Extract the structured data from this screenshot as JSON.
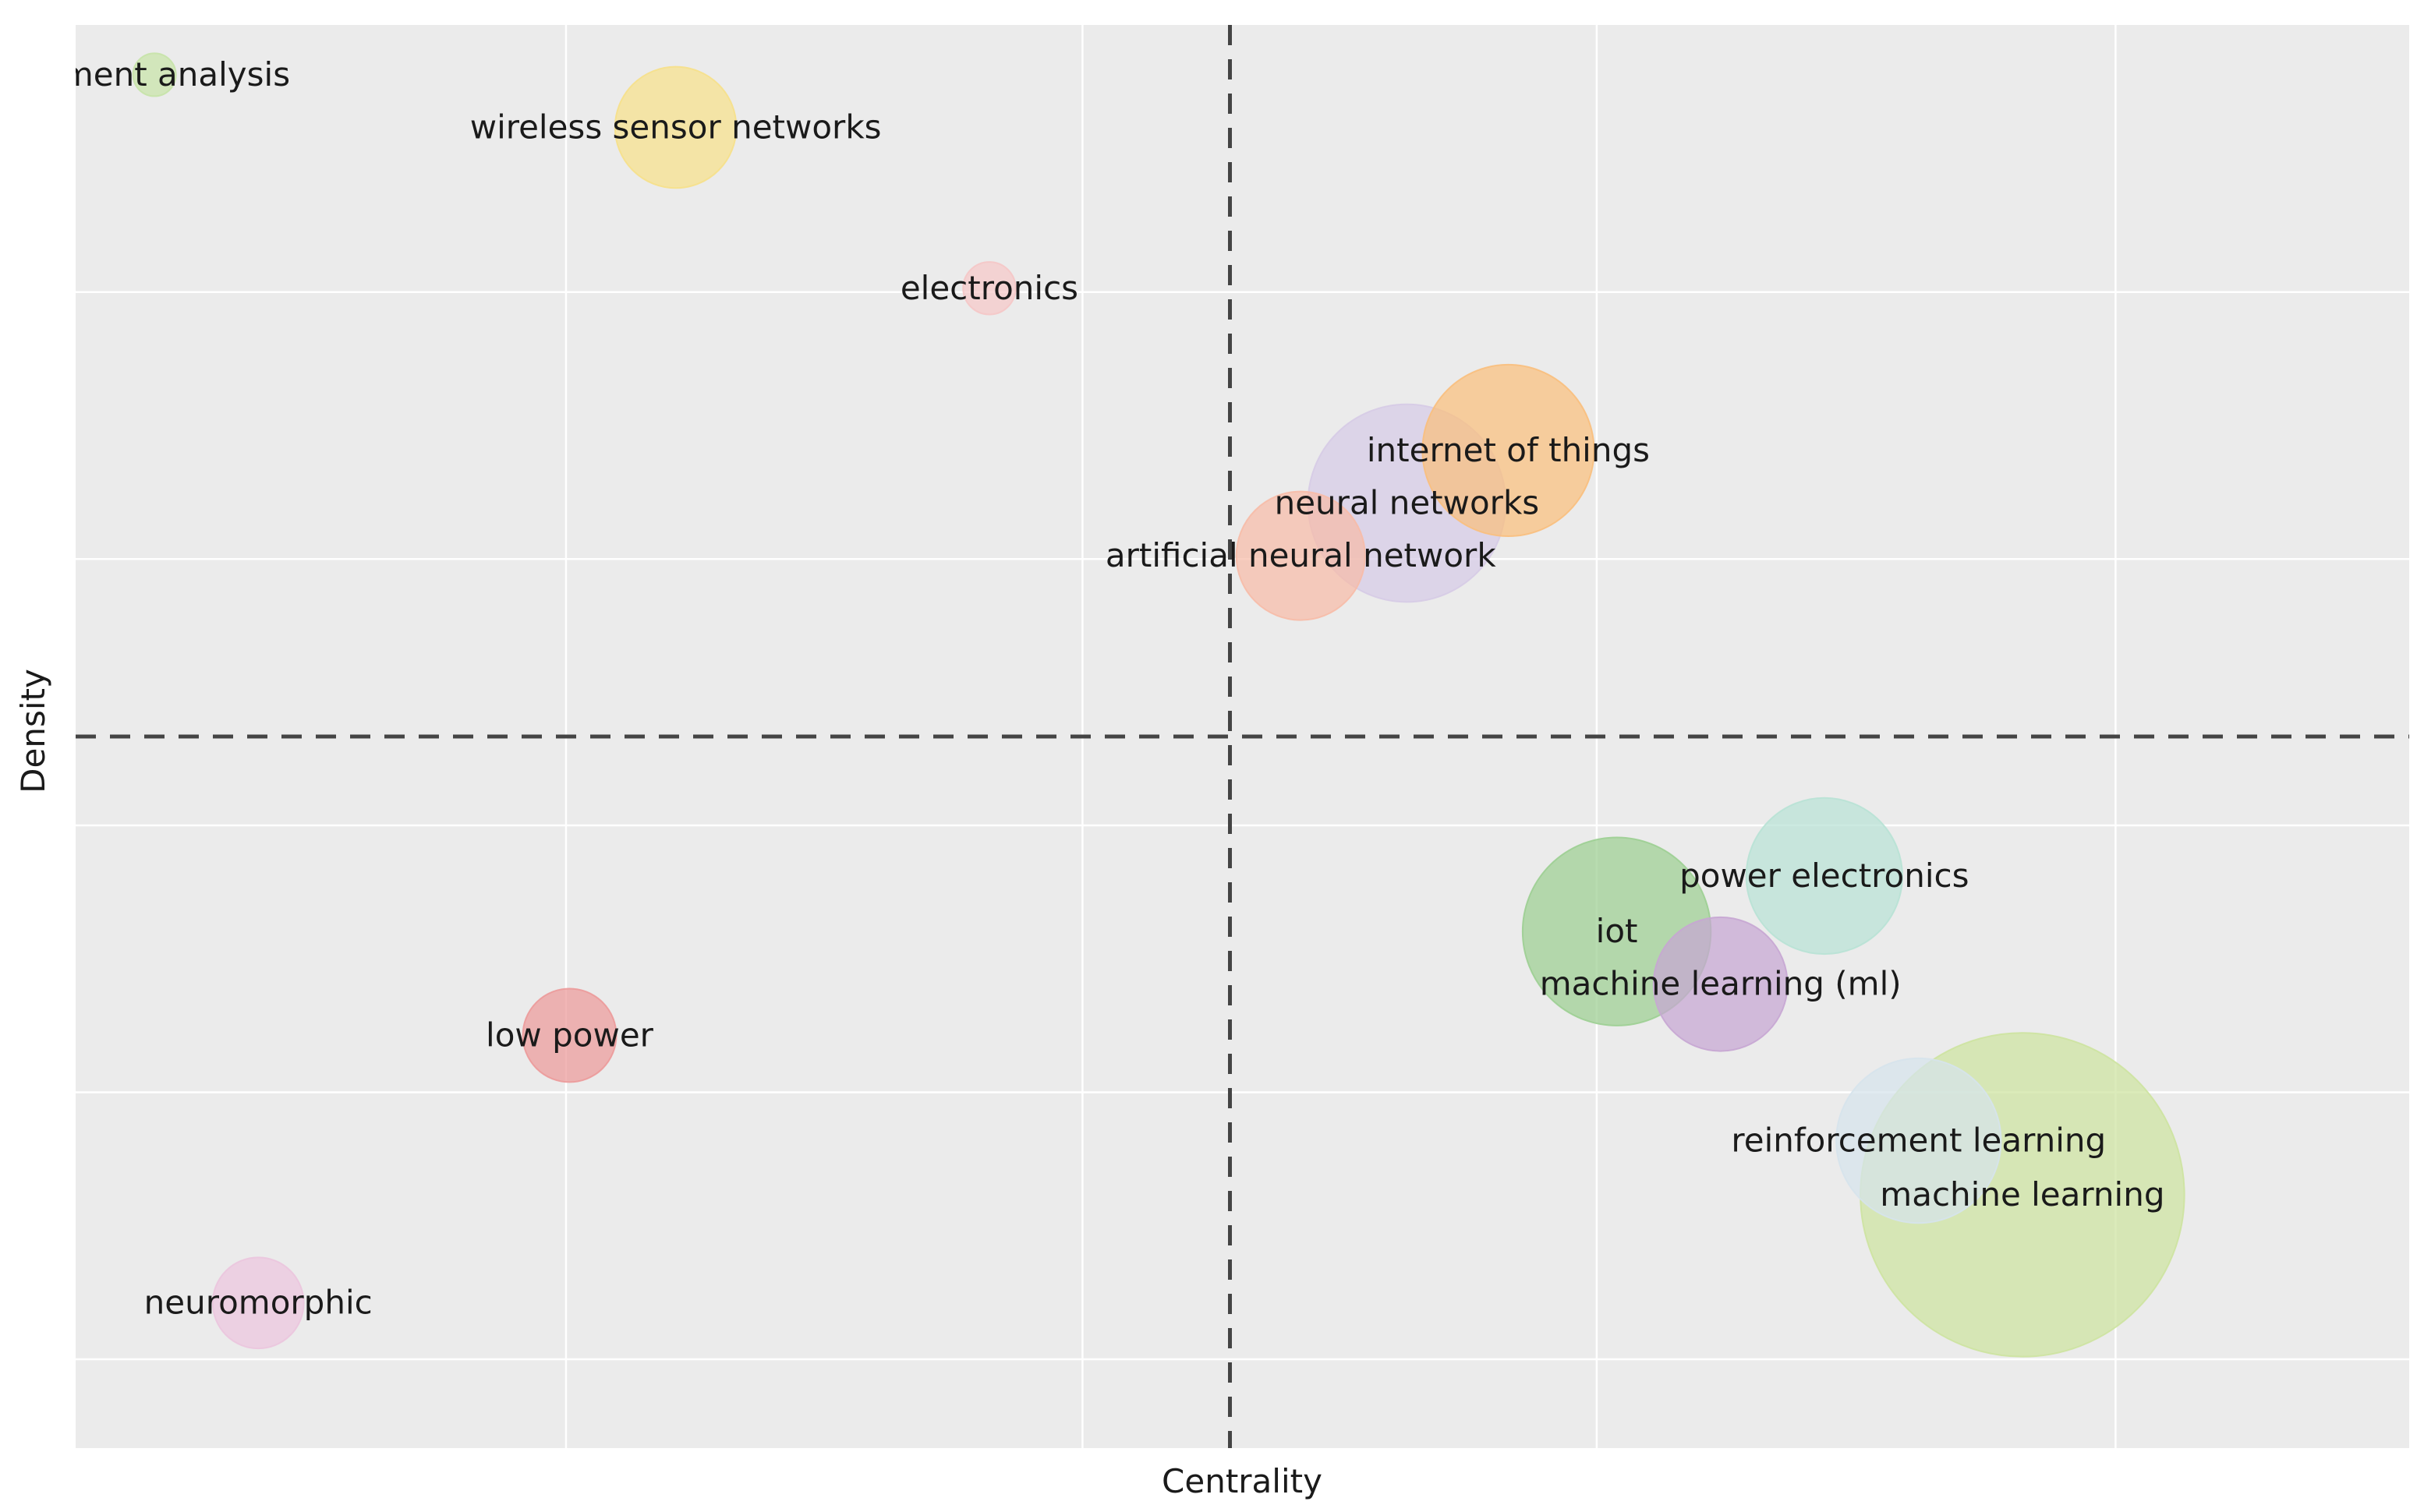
{
  "chart_data": {
    "type": "scatter",
    "subtype": "bubble",
    "title": "",
    "xlabel": "Centrality",
    "ylabel": "Density",
    "xlim": [
      0,
      1
    ],
    "ylim": [
      0,
      1
    ],
    "x_divider": 0.5,
    "y_divider": 0.5,
    "grid": true,
    "show_tick_labels": false,
    "points": [
      {
        "name": "sentiment analysis",
        "label": "ntiment analysis",
        "x": 0.044,
        "y": 0.965,
        "size": 0.4,
        "color": "#c7e3a8"
      },
      {
        "name": "wireless sensor networks",
        "label": "wireless sensor networks",
        "x": 0.265,
        "y": 0.928,
        "size": 3.2,
        "color": "#f6e08a"
      },
      {
        "name": "electronics",
        "label": "electronics",
        "x": 0.398,
        "y": 0.815,
        "size": 0.6,
        "color": "#f5c7c7"
      },
      {
        "name": "internet of things",
        "label": "internet of things",
        "x": 0.618,
        "y": 0.701,
        "size": 6.4,
        "color": "#f9bf7d"
      },
      {
        "name": "neural networks",
        "label": "neural networks",
        "x": 0.575,
        "y": 0.664,
        "size": 8.5,
        "color": "#d6cbe6"
      },
      {
        "name": "artificial neural network",
        "label": "artificial neural network",
        "x": 0.53,
        "y": 0.627,
        "size": 3.6,
        "color": "#f7bba7"
      },
      {
        "name": "power electronics",
        "label": "power electronics",
        "x": 0.752,
        "y": 0.402,
        "size": 5.3,
        "color": "#b8e2d5"
      },
      {
        "name": "iot",
        "label": "iot",
        "x": 0.664,
        "y": 0.363,
        "size": 7.7,
        "color": "#9ccf92"
      },
      {
        "name": "machine learning (ml)",
        "label": "machine learning (ml)",
        "x": 0.708,
        "y": 0.326,
        "size": 3.9,
        "color": "#c6a6d3"
      },
      {
        "name": "low power",
        "label": "low power",
        "x": 0.22,
        "y": 0.29,
        "size": 1.9,
        "color": "#ec9a9a"
      },
      {
        "name": "reinforcement learning",
        "label": "reinforcement learning",
        "x": 0.792,
        "y": 0.216,
        "size": 5.9,
        "color": "#d6e3ec"
      },
      {
        "name": "machine learning",
        "label": "machine learning",
        "x": 0.836,
        "y": 0.178,
        "size": 22.8,
        "color": "#cde3a0"
      },
      {
        "name": "neuromorphic",
        "label": "neuromorphic",
        "x": 0.088,
        "y": 0.102,
        "size": 1.8,
        "color": "#ebc5de"
      }
    ]
  }
}
